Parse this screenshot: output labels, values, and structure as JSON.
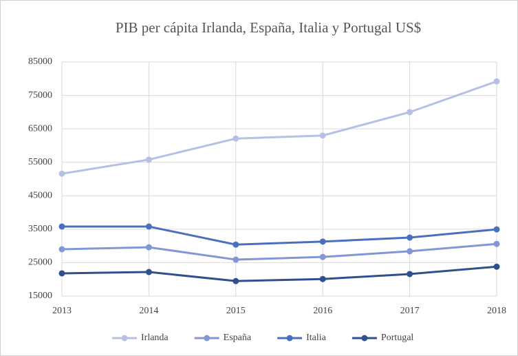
{
  "chart_data": {
    "type": "line",
    "title": "PIB per cápita Irlanda, España, Italia y Portugal US$",
    "categories": [
      "2013",
      "2014",
      "2015",
      "2016",
      "2017",
      "2018"
    ],
    "series": [
      {
        "name": "Irlanda",
        "color": "#b4c1e4",
        "values": [
          51600,
          55800,
          62100,
          63000,
          70000,
          79200
        ]
      },
      {
        "name": "España",
        "color": "#8197d6",
        "values": [
          29000,
          29600,
          25900,
          26700,
          28400,
          30600
        ]
      },
      {
        "name": "Italia",
        "color": "#4a6fbf",
        "values": [
          35800,
          35800,
          30400,
          31300,
          32500,
          34950
        ]
      },
      {
        "name": "Portugal",
        "color": "#2f4f8f",
        "values": [
          21800,
          22200,
          19500,
          20100,
          21600,
          23800
        ]
      }
    ],
    "ylim": [
      15000,
      85000
    ],
    "yticks": [
      15000,
      25000,
      35000,
      45000,
      55000,
      65000,
      75000,
      85000
    ],
    "grid": true,
    "legend": "bottom"
  }
}
